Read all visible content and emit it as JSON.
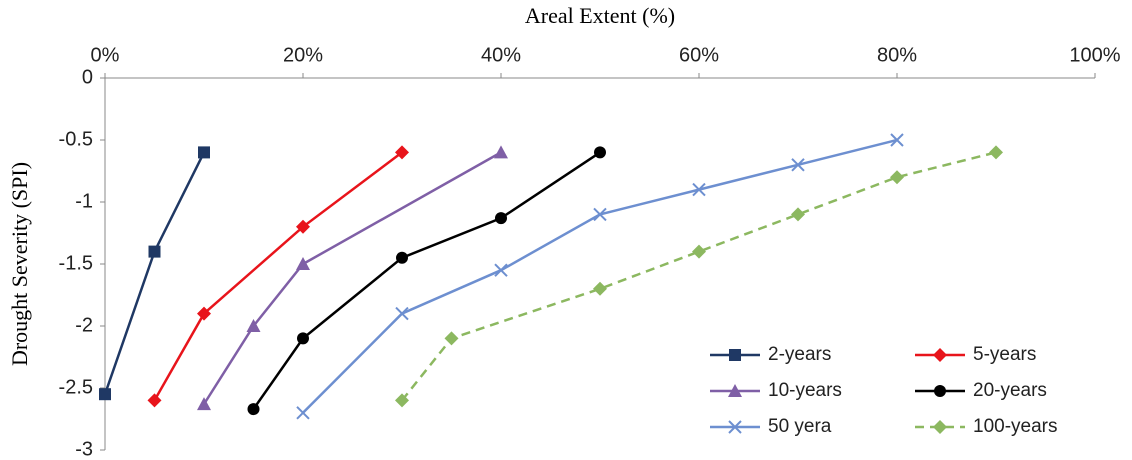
{
  "chart_data": {
    "type": "line",
    "xlabel": "Areal Extent (%)",
    "ylabel": "Drought Severity (SPI)",
    "xlim": [
      0,
      100
    ],
    "xticks": [
      {
        "value": 0,
        "label": "0%"
      },
      {
        "value": 20,
        "label": "20%"
      },
      {
        "value": 40,
        "label": "40%"
      },
      {
        "value": 60,
        "label": "60%"
      },
      {
        "value": 80,
        "label": "80%"
      },
      {
        "value": 100,
        "label": "100%"
      }
    ],
    "ylim": [
      0,
      -3
    ],
    "yticks": [
      0,
      -0.5,
      -1,
      -1.5,
      -2,
      -2.5,
      -3
    ],
    "legend": "bottom-right",
    "series": [
      {
        "name": "2-years",
        "color": "#1f3864",
        "marker": "square",
        "dashed": false,
        "x": [
          0,
          5,
          10
        ],
        "values": [
          -2.55,
          -1.4,
          -0.6
        ]
      },
      {
        "name": "5-years",
        "color": "#e8141b",
        "marker": "diamond",
        "dashed": false,
        "x": [
          5,
          10,
          20,
          30
        ],
        "values": [
          -2.6,
          -1.9,
          -1.2,
          -0.6
        ]
      },
      {
        "name": "10-years",
        "color": "#7f5fa6",
        "marker": "triangle",
        "dashed": false,
        "x": [
          10,
          15,
          20,
          40
        ],
        "values": [
          -2.63,
          -2.0,
          -1.5,
          -0.6
        ]
      },
      {
        "name": "20-years",
        "color": "#000000",
        "marker": "circle",
        "dashed": false,
        "x": [
          15,
          20,
          30,
          40,
          50
        ],
        "values": [
          -2.67,
          -2.1,
          -1.45,
          -1.13,
          -0.6
        ]
      },
      {
        "name": "50 yera",
        "color": "#6d8fd0",
        "marker": "x",
        "dashed": false,
        "x": [
          20,
          30,
          40,
          50,
          60,
          70,
          80
        ],
        "values": [
          -2.7,
          -1.9,
          -1.55,
          -1.1,
          -0.9,
          -0.7,
          -0.5
        ]
      },
      {
        "name": "100-years",
        "color": "#8cb860",
        "marker": "diamond",
        "dashed": true,
        "x": [
          30,
          35,
          50,
          60,
          70,
          80,
          90
        ],
        "values": [
          -2.6,
          -2.1,
          -1.7,
          -1.4,
          -1.1,
          -0.8,
          -0.6
        ]
      }
    ]
  }
}
